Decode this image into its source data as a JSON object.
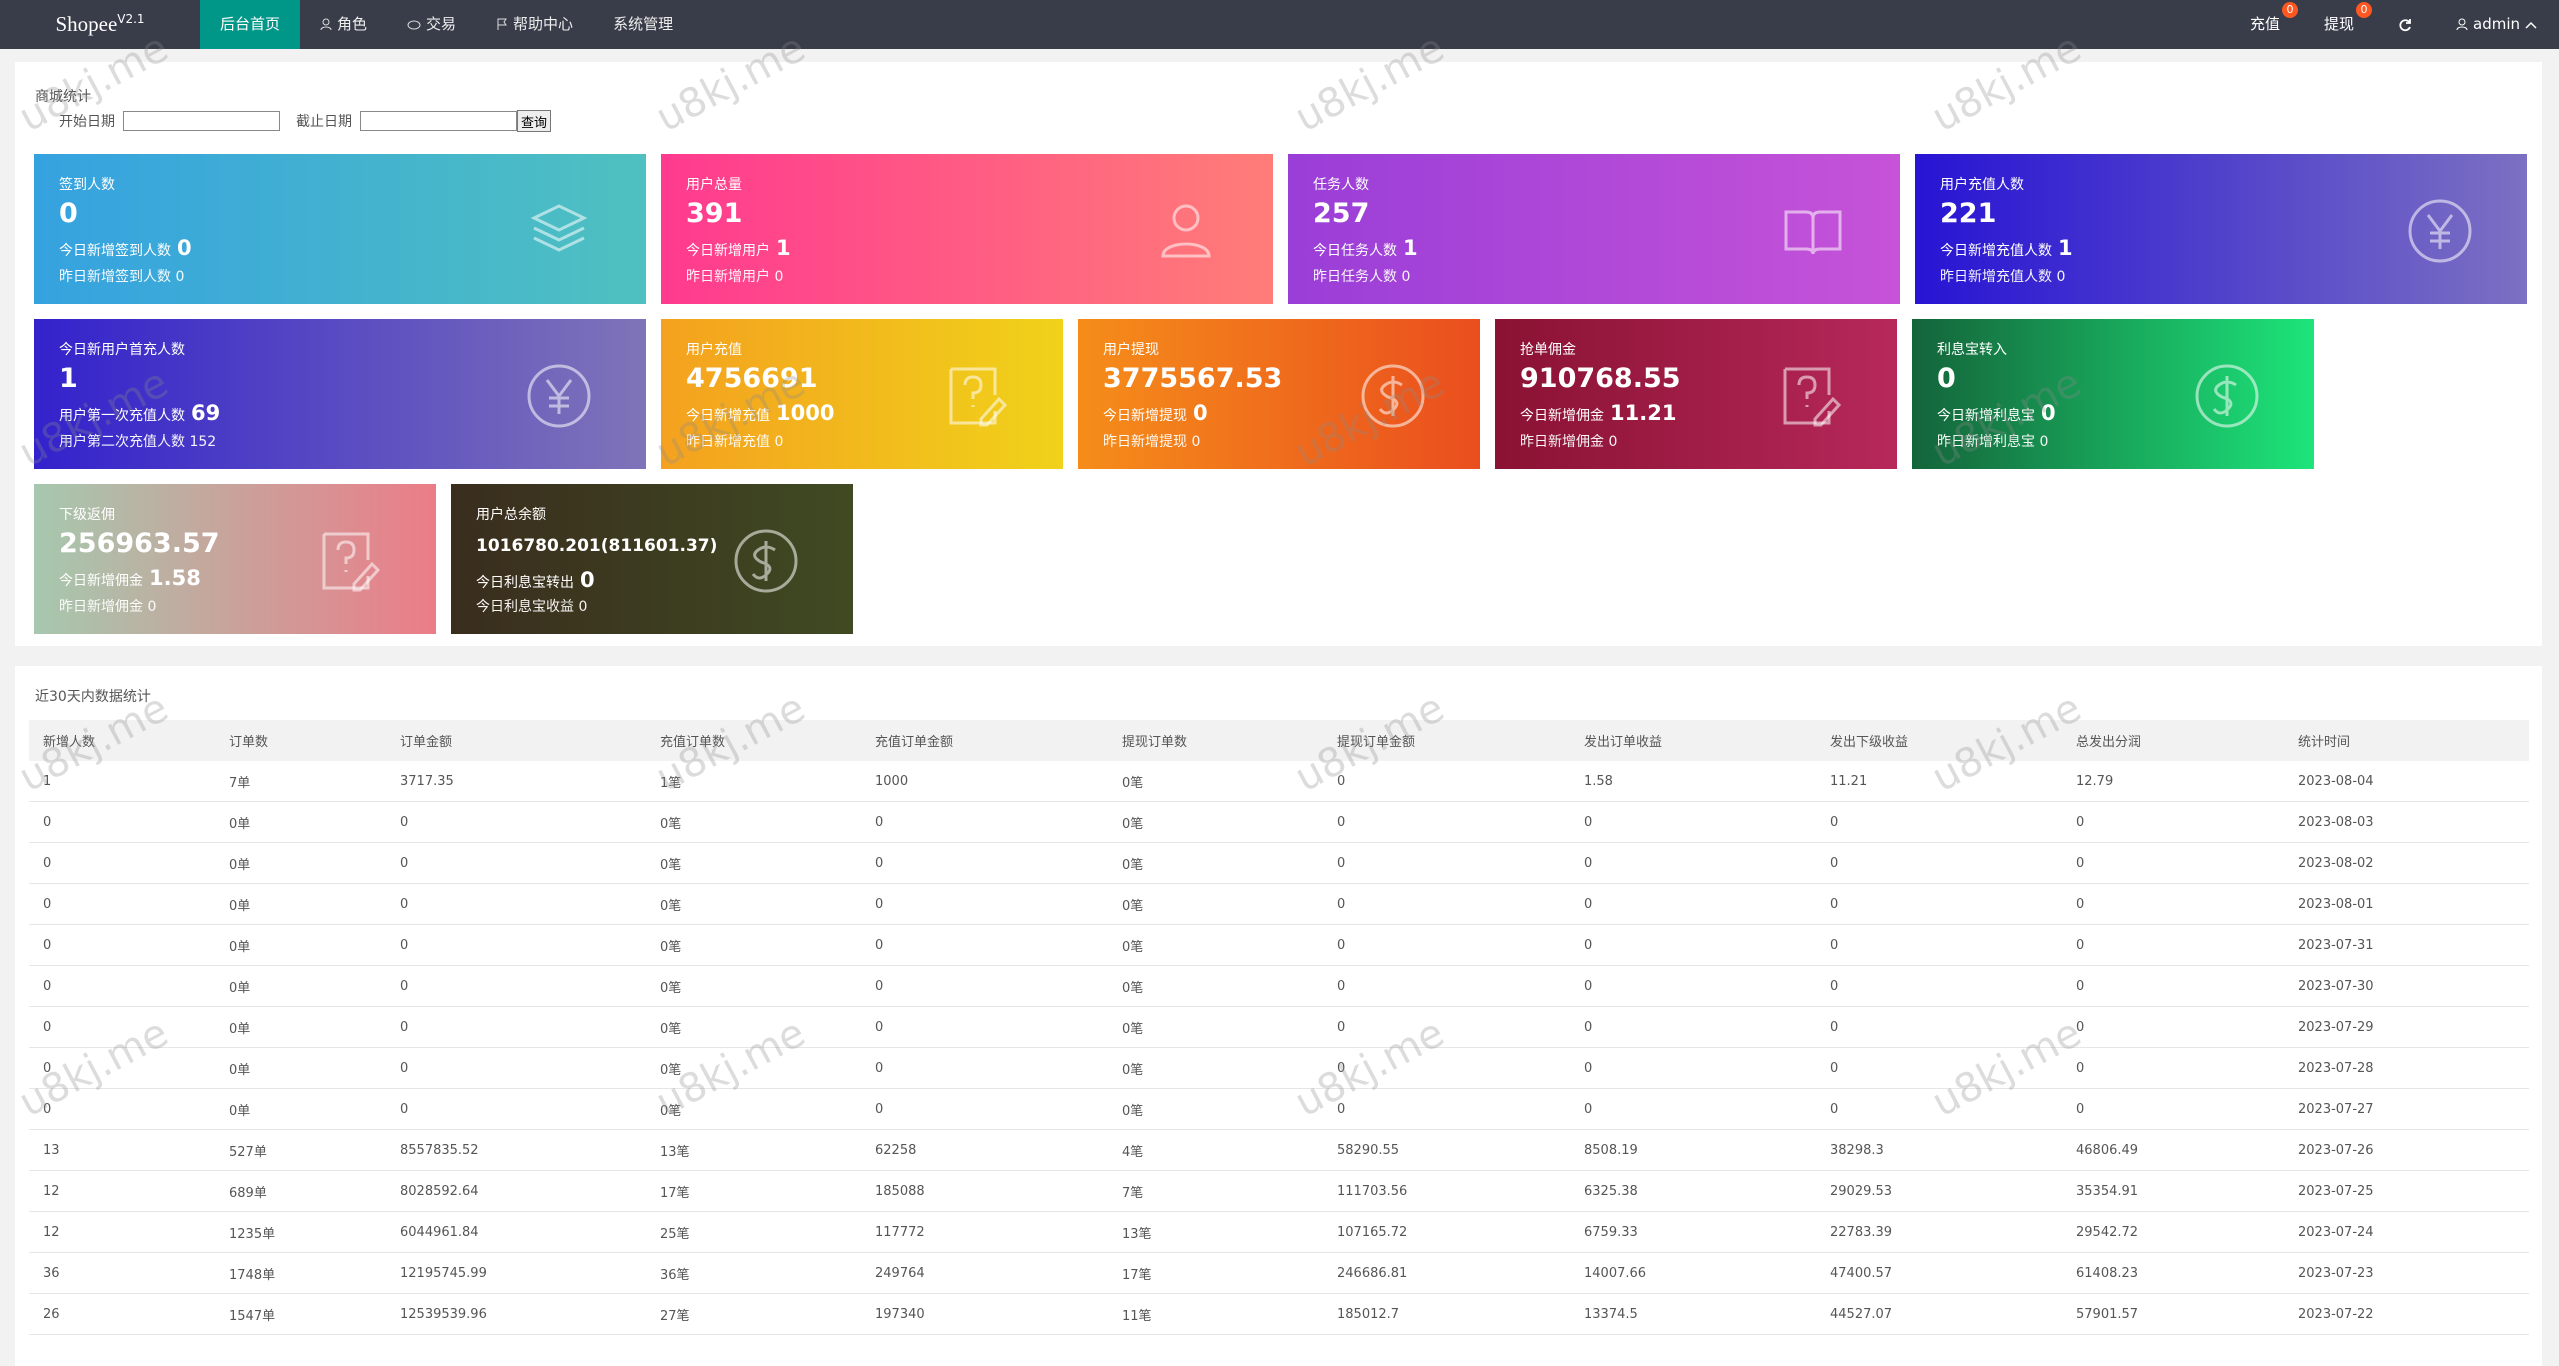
{
  "nav": {
    "logo": "Shopee",
    "version": "V2.1",
    "menu": [
      "后台首页",
      "角色",
      "交易",
      "帮助中心",
      "系统管理"
    ],
    "right": [
      {
        "label": "充值",
        "badge": 0
      },
      {
        "label": "提现",
        "badge": 0
      }
    ],
    "user": "admin"
  },
  "watermark": "u8kj.me",
  "stats": {
    "title": "商城统计",
    "start_label": "开始日期",
    "end_label": "截止日期",
    "button": "查询",
    "cards": [
      {
        "title": "签到人数",
        "value": "0",
        "line1_label": "今日新增签到人数",
        "line1_value": "0",
        "line2": "昨日新增签到人数 0"
      },
      {
        "title": "用户总量",
        "value": "391",
        "line1_label": "今日新增用户",
        "line1_value": "1",
        "line2": "昨日新增用户 0"
      },
      {
        "title": "任务人数",
        "value": "257",
        "line1_label": "今日任务人数",
        "line1_value": "1",
        "line2": "昨日任务人数 0"
      },
      {
        "title": "用户充值人数",
        "value": "221",
        "line1_label": "今日新增充值人数",
        "line1_value": "1",
        "line2": "昨日新增充值人数 0"
      },
      {
        "title": "今日新用户首充人数",
        "value": "1",
        "line1_label": "用户第一次充值人数",
        "line1_value": "69",
        "line2": "用户第二次充值人数 152"
      },
      {
        "title": "用户充值",
        "value": "4756691",
        "line1_label": "今日新增充值",
        "line1_value": "1000",
        "line2": "昨日新增充值 0"
      },
      {
        "title": "用户提现",
        "value": "3775567.53",
        "line1_label": "今日新增提现",
        "line1_value": "0",
        "line2": "昨日新增提现 0"
      },
      {
        "title": "抢单佣金",
        "value": "910768.55",
        "line1_label": "今日新增佣金",
        "line1_value": "11.21",
        "line2": "昨日新增佣金 0"
      },
      {
        "title": "利息宝转入",
        "value": "0",
        "line1_label": "今日新增利息宝",
        "line1_value": "0",
        "line2": "昨日新增利息宝 0"
      },
      {
        "title": "下级返佣",
        "value": "256963.57",
        "line1_label": "今日新增佣金",
        "line1_value": "1.58",
        "line2": "昨日新增佣金 0"
      },
      {
        "title": "用户总余额",
        "value": "1016780.201(811601.37)",
        "line1_label": "今日利息宝转出",
        "line1_value": "0",
        "line2": "今日利息宝收益 0"
      }
    ]
  },
  "table": {
    "title": "近30天内数据统计",
    "columns": [
      "新增人数",
      "订单数",
      "订单金额",
      "充值订单数",
      "充值订单金额",
      "提现订单数",
      "提现订单金额",
      "发出订单收益",
      "发出下级收益",
      "总发出分润",
      "统计时间"
    ],
    "rows": [
      [
        "1",
        "7单",
        "3717.35",
        "1笔",
        "1000",
        "0笔",
        "0",
        "1.58",
        "11.21",
        "12.79",
        "2023-08-04"
      ],
      [
        "0",
        "0单",
        "0",
        "0笔",
        "0",
        "0笔",
        "0",
        "0",
        "0",
        "0",
        "2023-08-03"
      ],
      [
        "0",
        "0单",
        "0",
        "0笔",
        "0",
        "0笔",
        "0",
        "0",
        "0",
        "0",
        "2023-08-02"
      ],
      [
        "0",
        "0单",
        "0",
        "0笔",
        "0",
        "0笔",
        "0",
        "0",
        "0",
        "0",
        "2023-08-01"
      ],
      [
        "0",
        "0单",
        "0",
        "0笔",
        "0",
        "0笔",
        "0",
        "0",
        "0",
        "0",
        "2023-07-31"
      ],
      [
        "0",
        "0单",
        "0",
        "0笔",
        "0",
        "0笔",
        "0",
        "0",
        "0",
        "0",
        "2023-07-30"
      ],
      [
        "0",
        "0单",
        "0",
        "0笔",
        "0",
        "0笔",
        "0",
        "0",
        "0",
        "0",
        "2023-07-29"
      ],
      [
        "0",
        "0单",
        "0",
        "0笔",
        "0",
        "0笔",
        "0",
        "0",
        "0",
        "0",
        "2023-07-28"
      ],
      [
        "0",
        "0单",
        "0",
        "0笔",
        "0",
        "0笔",
        "0",
        "0",
        "0",
        "0",
        "2023-07-27"
      ],
      [
        "13",
        "527单",
        "8557835.52",
        "13笔",
        "62258",
        "4笔",
        "58290.55",
        "8508.19",
        "38298.3",
        "46806.49",
        "2023-07-26"
      ],
      [
        "12",
        "689单",
        "8028592.64",
        "17笔",
        "185088",
        "7笔",
        "111703.56",
        "6325.38",
        "29029.53",
        "35354.91",
        "2023-07-25"
      ],
      [
        "12",
        "1235单",
        "6044961.84",
        "25笔",
        "117772",
        "13笔",
        "107165.72",
        "6759.33",
        "22783.39",
        "29542.72",
        "2023-07-24"
      ],
      [
        "36",
        "1748单",
        "12195745.99",
        "36笔",
        "249764",
        "17笔",
        "246686.81",
        "14007.66",
        "47400.57",
        "61408.23",
        "2023-07-23"
      ],
      [
        "26",
        "1547单",
        "12539539.96",
        "27笔",
        "197340",
        "11笔",
        "185012.7",
        "13374.5",
        "44527.07",
        "57901.57",
        "2023-07-22"
      ]
    ]
  }
}
